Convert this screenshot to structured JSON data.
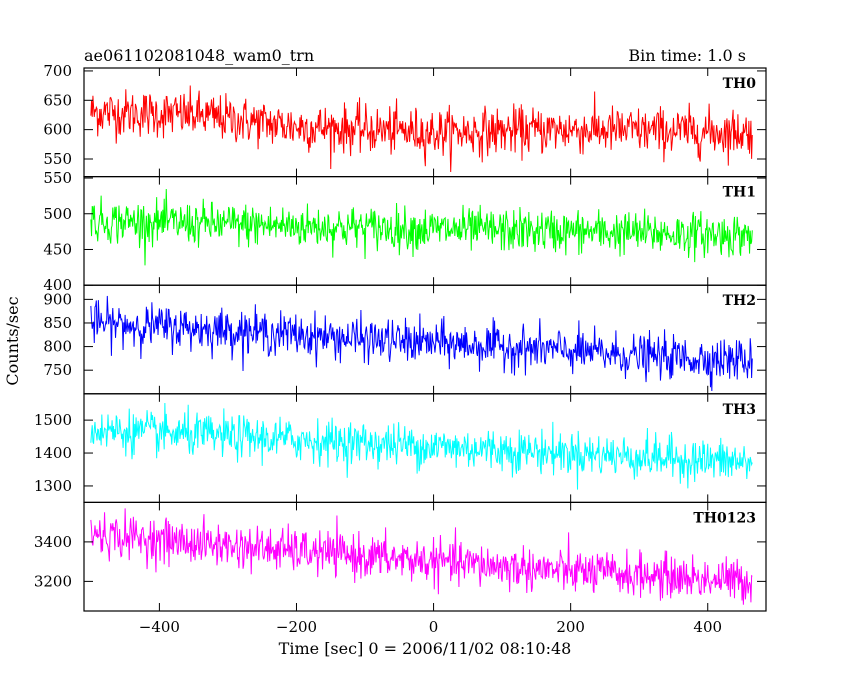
{
  "header": {
    "left_title": "ae061102081048_wam0_trn",
    "right_title": "Bin time: 1.0 s"
  },
  "chart_data": {
    "type": "line",
    "xlabel": "Time [sec] 0 = 2006/11/02 08:10:48",
    "ylabel": "Counts/sec",
    "xlim": [
      -510,
      485
    ],
    "x_start": -500,
    "x_end": 465,
    "bin_seconds": 1.0,
    "x_ticks": [
      -400,
      -200,
      0,
      200,
      400
    ],
    "panels": [
      {
        "name": "TH0",
        "color": "#ff0000",
        "ylim": [
          520,
          705
        ],
        "y_ticks": [
          550,
          600,
          650,
          700
        ],
        "trend": [
          [
            -500,
            630
          ],
          [
            -350,
            625
          ],
          [
            -200,
            605
          ],
          [
            0,
            595
          ],
          [
            200,
            600
          ],
          [
            465,
            595
          ]
        ],
        "noise_amplitude": 40
      },
      {
        "name": "TH1",
        "color": "#00ff00",
        "ylim": [
          400,
          552
        ],
        "y_ticks": [
          400,
          450,
          500,
          550
        ],
        "trend": [
          [
            -500,
            490
          ],
          [
            -300,
            485
          ],
          [
            0,
            478
          ],
          [
            200,
            475
          ],
          [
            465,
            470
          ]
        ],
        "noise_amplitude": 30
      },
      {
        "name": "TH2",
        "color": "#0000ff",
        "ylim": [
          700,
          930
        ],
        "y_ticks": [
          750,
          800,
          850,
          900
        ],
        "trend": [
          [
            -500,
            850
          ],
          [
            -300,
            835
          ],
          [
            -100,
            815
          ],
          [
            100,
            800
          ],
          [
            300,
            780
          ],
          [
            465,
            770
          ]
        ],
        "noise_amplitude": 45
      },
      {
        "name": "TH3",
        "color": "#00ffff",
        "ylim": [
          1250,
          1580
        ],
        "y_ticks": [
          1300,
          1400,
          1500
        ],
        "trend": [
          [
            -500,
            1470
          ],
          [
            -300,
            1450
          ],
          [
            0,
            1420
          ],
          [
            200,
            1400
          ],
          [
            465,
            1370
          ]
        ],
        "noise_amplitude": 65
      },
      {
        "name": "TH0123",
        "color": "#ff00ff",
        "ylim": [
          3050,
          3600
        ],
        "y_ticks": [
          3200,
          3400
        ],
        "trend": [
          [
            -500,
            3440
          ],
          [
            -300,
            3380
          ],
          [
            0,
            3300
          ],
          [
            200,
            3250
          ],
          [
            465,
            3200
          ]
        ],
        "noise_amplitude": 110
      }
    ]
  }
}
